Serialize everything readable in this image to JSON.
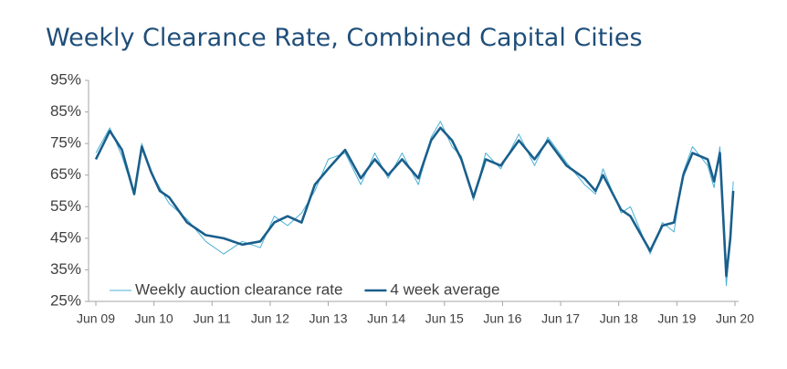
{
  "chart_data": {
    "type": "line",
    "title": "Weekly Clearance Rate, Combined Capital Cities",
    "x": [
      2009.5,
      2009.74,
      2009.95,
      2010.16,
      2010.29,
      2010.45,
      2010.6,
      2010.76,
      2011.07,
      2011.39,
      2011.7,
      2012.02,
      2012.33,
      2012.57,
      2012.8,
      2013.04,
      2013.27,
      2013.5,
      2013.79,
      2014.06,
      2014.3,
      2014.53,
      2014.77,
      2015.05,
      2015.27,
      2015.43,
      2015.63,
      2015.79,
      2016.0,
      2016.21,
      2016.47,
      2016.78,
      2017.05,
      2017.28,
      2017.6,
      2017.91,
      2018.1,
      2018.23,
      2018.54,
      2018.7,
      2019.04,
      2019.25,
      2019.45,
      2019.61,
      2019.77,
      2020.03,
      2020.14,
      2020.24,
      2020.35,
      2020.42,
      2020.47
    ],
    "series": [
      {
        "name": "Weekly auction clearance rate",
        "color": "#4bb0d6",
        "width": 1,
        "values": [
          72,
          80,
          71,
          59,
          75,
          66,
          61,
          56,
          51,
          44,
          40,
          44,
          42,
          52,
          49,
          53,
          60,
          70,
          72,
          62,
          72,
          64,
          72,
          62,
          77,
          82,
          74,
          71,
          57,
          72,
          67,
          78,
          68,
          77,
          69,
          62,
          59,
          67,
          53,
          55,
          40,
          50,
          47,
          66,
          74,
          68,
          61,
          74,
          30,
          45,
          63
        ]
      },
      {
        "name": "4 week average",
        "color": "#1a5f8c",
        "width": 2.6,
        "values": [
          70,
          79,
          73,
          59,
          74,
          66,
          60,
          58,
          50,
          46,
          45,
          43,
          44,
          50,
          52,
          50,
          62,
          67,
          73,
          64,
          70,
          65,
          70,
          64,
          76,
          80,
          76,
          70,
          58,
          70,
          68,
          76,
          70,
          76,
          68,
          64,
          60,
          65,
          54,
          52,
          41,
          49,
          50,
          65,
          72,
          70,
          63,
          72,
          33,
          45,
          60
        ]
      }
    ],
    "xlim": [
      2009.5,
      2020.5
    ],
    "xticks": [
      {
        "value": 2009.5,
        "label": "Jun 09"
      },
      {
        "value": 2010.5,
        "label": "Jun 10"
      },
      {
        "value": 2011.5,
        "label": "Jun 11"
      },
      {
        "value": 2012.5,
        "label": "Jun 12"
      },
      {
        "value": 2013.5,
        "label": "Jun 13"
      },
      {
        "value": 2014.5,
        "label": "Jun 14"
      },
      {
        "value": 2015.5,
        "label": "Jun 15"
      },
      {
        "value": 2016.5,
        "label": "Jun 16"
      },
      {
        "value": 2017.5,
        "label": "Jun 17"
      },
      {
        "value": 2018.5,
        "label": "Jun 18"
      },
      {
        "value": 2019.5,
        "label": "Jun 19"
      },
      {
        "value": 2020.5,
        "label": "Jun 20"
      }
    ],
    "ylim": [
      25,
      95
    ],
    "yticks": [
      {
        "value": 25,
        "label": "25%"
      },
      {
        "value": 35,
        "label": "35%"
      },
      {
        "value": 45,
        "label": "45%"
      },
      {
        "value": 55,
        "label": "55%"
      },
      {
        "value": 65,
        "label": "65%"
      },
      {
        "value": 75,
        "label": "75%"
      },
      {
        "value": 85,
        "label": "85%"
      },
      {
        "value": 95,
        "label": "95%"
      }
    ],
    "grid": false,
    "legend": "lower left"
  }
}
